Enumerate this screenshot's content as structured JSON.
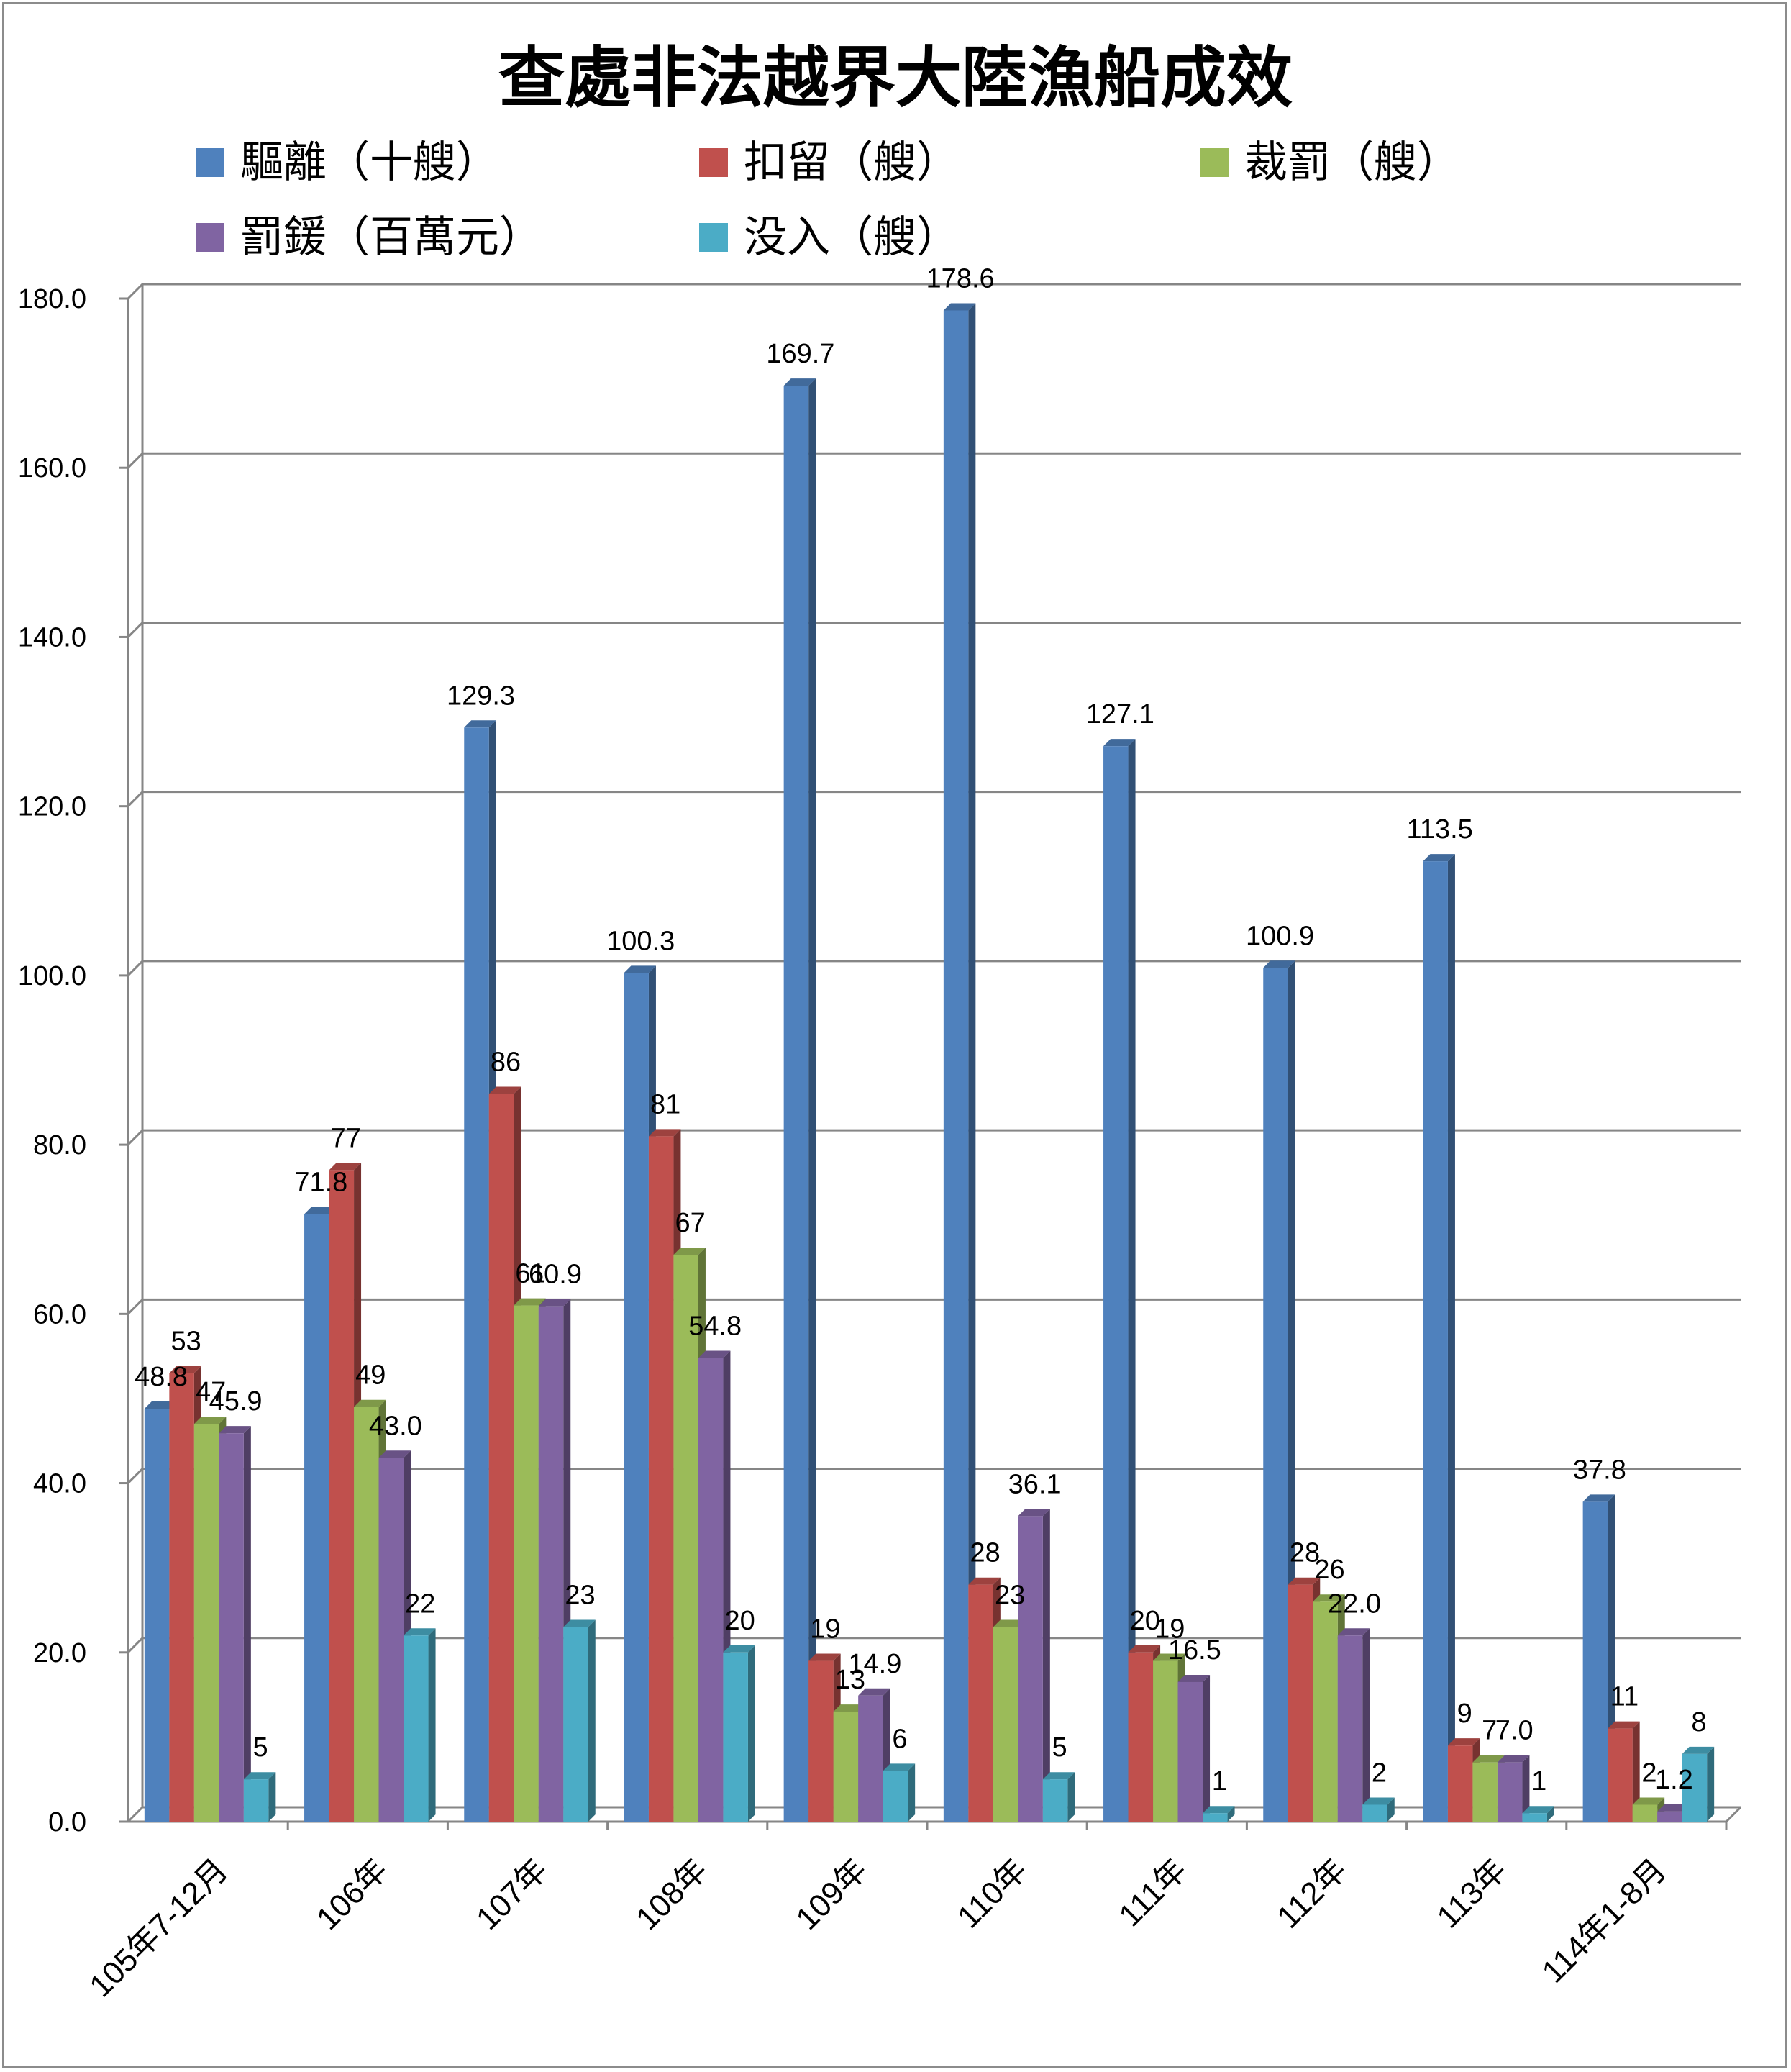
{
  "chart_data": {
    "type": "bar",
    "title": "查處非法越界大陸漁船成效",
    "categories": [
      "105年7-12月",
      "106年",
      "107年",
      "108年",
      "109年",
      "110年",
      "111年",
      "112年",
      "113年",
      "114年1-8月"
    ],
    "series": [
      {
        "name": "驅離（十艘）",
        "color": "#4f81bd",
        "values": [
          48.8,
          71.8,
          129.3,
          100.3,
          169.7,
          178.6,
          127.1,
          100.9,
          113.5,
          37.8
        ],
        "labels": [
          "48.8",
          "71.8",
          "129.3",
          "100.3",
          "169.7",
          "178.6",
          "127.1",
          "100.9",
          "113.5",
          "37.8"
        ]
      },
      {
        "name": "扣留（艘）",
        "color": "#c0504d",
        "values": [
          53,
          77,
          86,
          81,
          19,
          28,
          20,
          28,
          9,
          11
        ],
        "labels": [
          "53",
          "77",
          "86",
          "81",
          "19",
          "28",
          "20",
          "28",
          "9",
          "11"
        ]
      },
      {
        "name": "裁罰（艘）",
        "color": "#9bbb59",
        "values": [
          47,
          49,
          61,
          67,
          13,
          23,
          19,
          26,
          7,
          2
        ],
        "labels": [
          "47",
          "49",
          "61",
          "67",
          "13",
          "23",
          "19",
          "26",
          "7",
          "2"
        ]
      },
      {
        "name": "罰鍰（百萬元）",
        "color": "#8064a2",
        "values": [
          45.9,
          43.0,
          60.9,
          54.8,
          14.9,
          36.1,
          16.5,
          22.0,
          7.0,
          1.2
        ],
        "labels": [
          "45.9",
          "43.0",
          "60.9",
          "54.8",
          "14.9",
          "36.1",
          "16.5",
          "22.0",
          "7.0",
          "1.2"
        ]
      },
      {
        "name": "没入（艘）",
        "color": "#4bacc6",
        "values": [
          5,
          22,
          23,
          20,
          6,
          5,
          1,
          2,
          1,
          8
        ],
        "labels": [
          "5",
          "22",
          "23",
          "20",
          "6",
          "5",
          "1",
          "2",
          "1",
          "8"
        ]
      }
    ],
    "ylim": [
      0,
      180
    ],
    "yticks": [
      "0.0",
      "20.0",
      "40.0",
      "60.0",
      "80.0",
      "100.0",
      "120.0",
      "140.0",
      "160.0",
      "180.0"
    ],
    "grid": true,
    "legend_position": "top",
    "style": "3d-clustered-column"
  }
}
